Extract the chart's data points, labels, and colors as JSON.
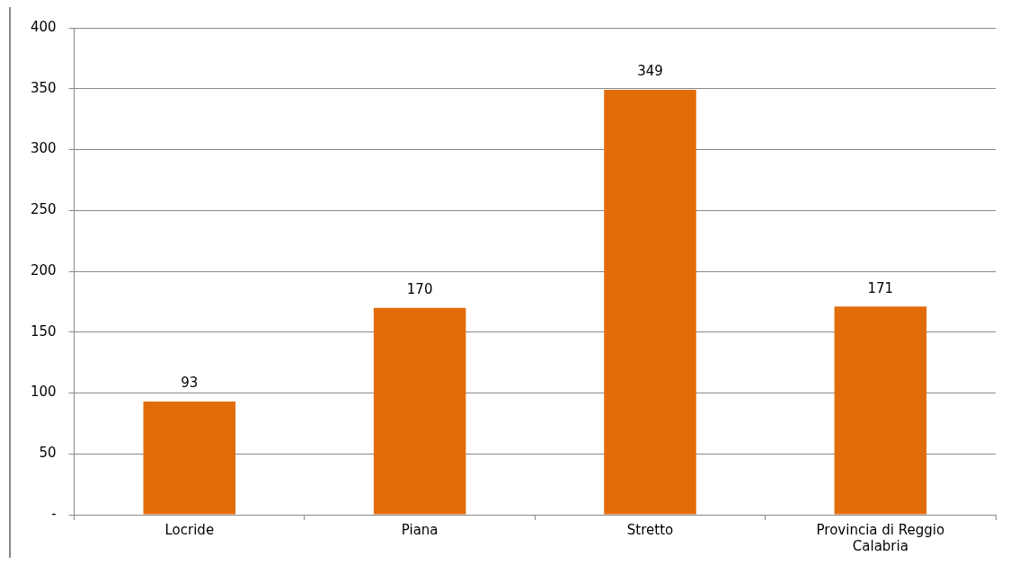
{
  "chart_data": {
    "type": "bar",
    "categories": [
      "Locride",
      "Piana",
      "Stretto",
      "Provincia di Reggio Calabria"
    ],
    "values": [
      93,
      170,
      349,
      171
    ],
    "color": "#e36c0a",
    "ylim": [
      0,
      400
    ],
    "yticks": [
      {
        "value": 0,
        "label": "-"
      },
      50,
      100,
      150,
      200,
      250,
      300,
      350,
      400
    ],
    "grid": "y",
    "data_labels": true,
    "legend": false
  }
}
